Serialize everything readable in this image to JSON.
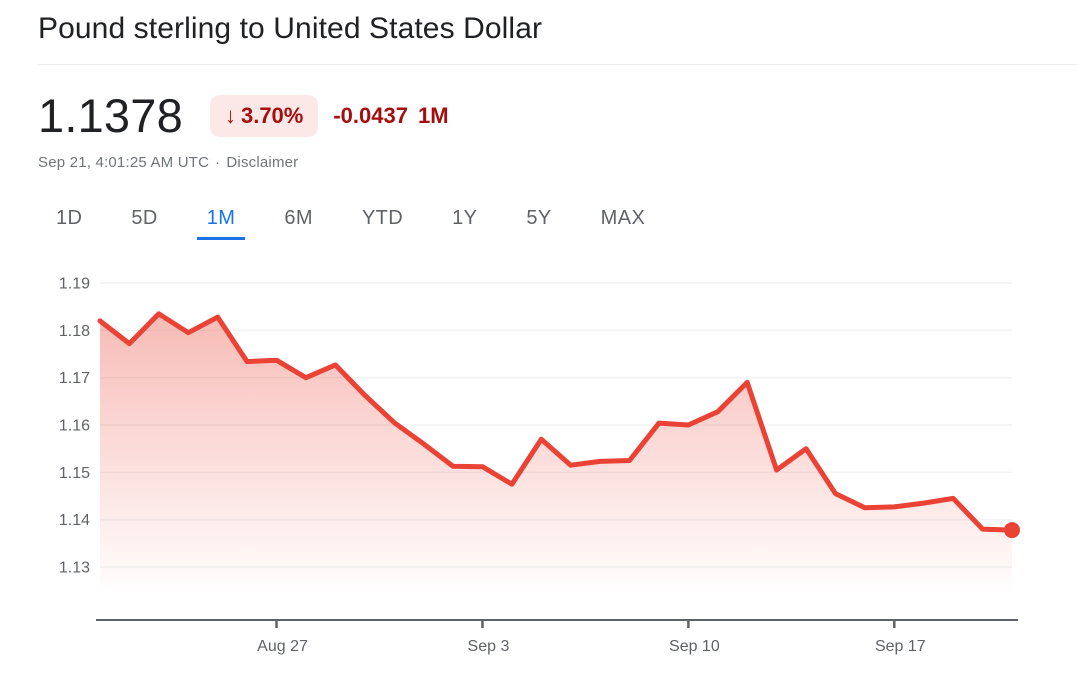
{
  "header": {
    "title": "Pound sterling to United States Dollar"
  },
  "quote": {
    "price": "1.1378",
    "arrow_glyph": "↓",
    "change_percent": "3.70%",
    "change_direction": "down",
    "change_value": "-0.0437",
    "change_period": "1M",
    "timestamp": "Sep 21, 4:01:25 AM UTC",
    "separator": "·",
    "disclaimer_label": "Disclaimer"
  },
  "tabs": {
    "items": [
      {
        "label": "1D",
        "active": false
      },
      {
        "label": "5D",
        "active": false
      },
      {
        "label": "1M",
        "active": true
      },
      {
        "label": "6M",
        "active": false
      },
      {
        "label": "YTD",
        "active": false
      },
      {
        "label": "1Y",
        "active": false
      },
      {
        "label": "5Y",
        "active": false
      },
      {
        "label": "MAX",
        "active": false
      }
    ]
  },
  "chart_data": {
    "type": "area",
    "title": "Pound sterling to United States Dollar, 1M",
    "xlabel": "",
    "ylabel": "",
    "x": [
      "Aug 21",
      "Aug 22",
      "Aug 23",
      "Aug 24",
      "Aug 25",
      "Aug 26",
      "Aug 27",
      "Aug 28",
      "Aug 29",
      "Aug 30",
      "Aug 31",
      "Sep 1",
      "Sep 2",
      "Sep 3",
      "Sep 4",
      "Sep 5",
      "Sep 6",
      "Sep 7",
      "Sep 8",
      "Sep 9",
      "Sep 10",
      "Sep 11",
      "Sep 12",
      "Sep 13",
      "Sep 14",
      "Sep 15",
      "Sep 16",
      "Sep 17",
      "Sep 18",
      "Sep 19",
      "Sep 20",
      "Sep 21"
    ],
    "values": [
      1.182,
      1.1772,
      1.1835,
      1.1795,
      1.1828,
      1.1734,
      1.1737,
      1.17,
      1.1727,
      1.1663,
      1.1605,
      1.156,
      1.1513,
      1.1512,
      1.1475,
      1.157,
      1.1515,
      1.1523,
      1.1525,
      1.1604,
      1.16,
      1.1628,
      1.169,
      1.1505,
      1.155,
      1.1455,
      1.1425,
      1.1427,
      1.1435,
      1.1445,
      1.138,
      1.1378
    ],
    "y_ticks": [
      1.19,
      1.18,
      1.17,
      1.16,
      1.15,
      1.14,
      1.13
    ],
    "x_tick_labels": [
      "Aug 27",
      "Sep 3",
      "Sep 10",
      "Sep 17"
    ],
    "x_tick_indices": [
      6,
      13,
      20,
      27
    ],
    "ylim": [
      1.13,
      1.19
    ],
    "grid": true,
    "legend": "none",
    "last_point_marker": true
  },
  "colors": {
    "line_red": "#ea4335",
    "badge_bg": "#fce8e6",
    "badge_text": "#a50e0e",
    "accent_blue": "#1a73e8",
    "text_primary": "#202124",
    "text_secondary": "#5f6368",
    "timestamp_gray": "#70757a",
    "gridline": "#f1f3f4",
    "divider": "#e8eaed",
    "axis": "#5f6368"
  }
}
